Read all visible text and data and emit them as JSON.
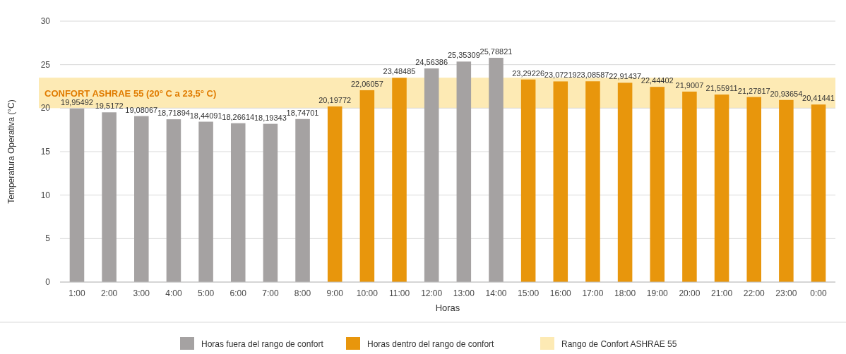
{
  "chart_data": {
    "type": "bar",
    "xlabel": "Horas",
    "ylabel": "Temperatura Operativa (°C)",
    "categories": [
      "1:00",
      "2:00",
      "3:00",
      "4:00",
      "5:00",
      "6:00",
      "7:00",
      "8:00",
      "9:00",
      "10:00",
      "11:00",
      "12:00",
      "13:00",
      "14:00",
      "15:00",
      "16:00",
      "17:00",
      "18:00",
      "19:00",
      "20:00",
      "21:00",
      "22:00",
      "23:00",
      "0:00"
    ],
    "series": [
      {
        "name": "Horas fuera del rango de confort",
        "color": "#a5a2a2",
        "values": [
          19.95492,
          19.5172,
          19.08067,
          18.71894,
          18.44091,
          18.26614,
          18.19343,
          18.74701,
          null,
          null,
          null,
          24.56386,
          25.35309,
          25.78821,
          null,
          null,
          null,
          null,
          null,
          null,
          null,
          null,
          null,
          null
        ],
        "value_labels": [
          "19,95492",
          "19,5172",
          "19,08067",
          "18,71894",
          "18,44091",
          "18,26614",
          "18,19343",
          "18,74701",
          null,
          null,
          null,
          "24,56386",
          "25,35309",
          "25,78821",
          null,
          null,
          null,
          null,
          null,
          null,
          null,
          null,
          null,
          null
        ]
      },
      {
        "name": "Horas dentro del rango de confort",
        "color": "#e8960c",
        "values": [
          null,
          null,
          null,
          null,
          null,
          null,
          null,
          null,
          20.19772,
          22.06057,
          23.48485,
          null,
          null,
          null,
          23.29226,
          23.07219,
          23.08587,
          22.91437,
          22.44402,
          21.9007,
          21.55911,
          21.27817,
          20.93654,
          20.41441
        ],
        "value_labels": [
          null,
          null,
          null,
          null,
          null,
          null,
          null,
          null,
          "20,19772",
          "22,06057",
          "23,48485",
          null,
          null,
          null,
          "23,29226",
          "23,07219",
          "23,08587",
          "22,91437",
          "22,44402",
          "21,9007",
          "21,55911",
          "21,27817",
          "20,93654",
          "20,41441"
        ]
      }
    ],
    "bands": [
      {
        "axis": "y",
        "from": 20,
        "to": 23.5,
        "label": "CONFORT ASHRAE 55 (20° C a 23,5° C)",
        "color": "#fdeab4"
      }
    ],
    "annotations": [
      "Rango de Confort ASHRAE 55"
    ],
    "ylim": [
      0,
      30
    ],
    "yticks": [
      0,
      5,
      10,
      15,
      20,
      25,
      30
    ],
    "grid": "y",
    "legend": "bottom"
  }
}
